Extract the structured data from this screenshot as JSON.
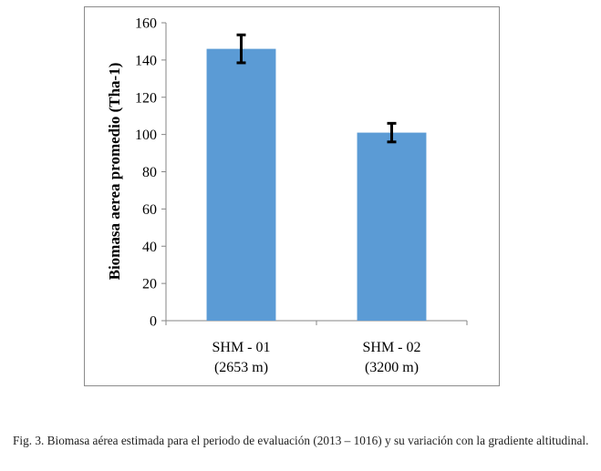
{
  "chart_data": {
    "type": "bar",
    "categories": [
      [
        "SHM - 01",
        "(2653 m)"
      ],
      [
        "SHM - 02",
        "(3200 m)"
      ]
    ],
    "values": [
      146,
      101
    ],
    "error": [
      7.5,
      5
    ],
    "ylabel": "Biomasa aerea promedio (Tha-1)",
    "xlabel": "",
    "ylim": [
      0,
      160
    ],
    "yticks": [
      0,
      20,
      40,
      60,
      80,
      100,
      120,
      140,
      160
    ],
    "grid": false,
    "legend": "none",
    "bar_color": "#5b9bd5",
    "error_color": "#000000"
  },
  "caption": "Fig. 3. Biomasa aérea estimada para el periodo de evaluación (2013 – 1016) y su variación con la gradiente altitudinal."
}
